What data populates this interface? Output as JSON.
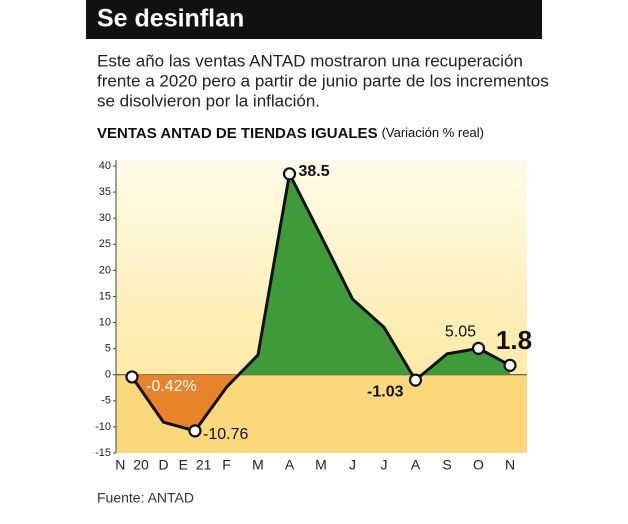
{
  "header": {
    "title": "Se desinflan"
  },
  "description": [
    "Este año las ventas ANTAD mostraron una recuperación",
    "frente a 2020 pero a partir de junio parte de los incrementos",
    "se disolvieron por la inflación."
  ],
  "chart_data": {
    "type": "area",
    "title": "VENTAS ANTAD DE TIENDAS IGUALES",
    "subtitle": "(Variación % real)",
    "categories": [
      "N 20",
      "D",
      "E 21",
      "F",
      "M",
      "A",
      "M",
      "J",
      "J",
      "A",
      "S",
      "O",
      "N"
    ],
    "values": [
      -0.42,
      -9.1,
      -10.76,
      -2.4,
      3.8,
      38.5,
      26.6,
      14.5,
      9.1,
      -1.03,
      4.0,
      5.05,
      1.8
    ],
    "value_labels": [
      "-0.42%",
      null,
      "-10.76",
      null,
      null,
      "38.5",
      null,
      null,
      null,
      "-1.03",
      null,
      "5.05",
      "1.8"
    ],
    "colors": {
      "positive": "#3f9a3a",
      "negative": "#e8832a",
      "line": "#111111"
    },
    "ylim": [
      -15,
      40
    ],
    "yticks": [
      40,
      35,
      30,
      25,
      20,
      15,
      10,
      5,
      0,
      -5,
      -10,
      -15
    ],
    "grid": false
  },
  "source": "Fuente: ANTAD"
}
